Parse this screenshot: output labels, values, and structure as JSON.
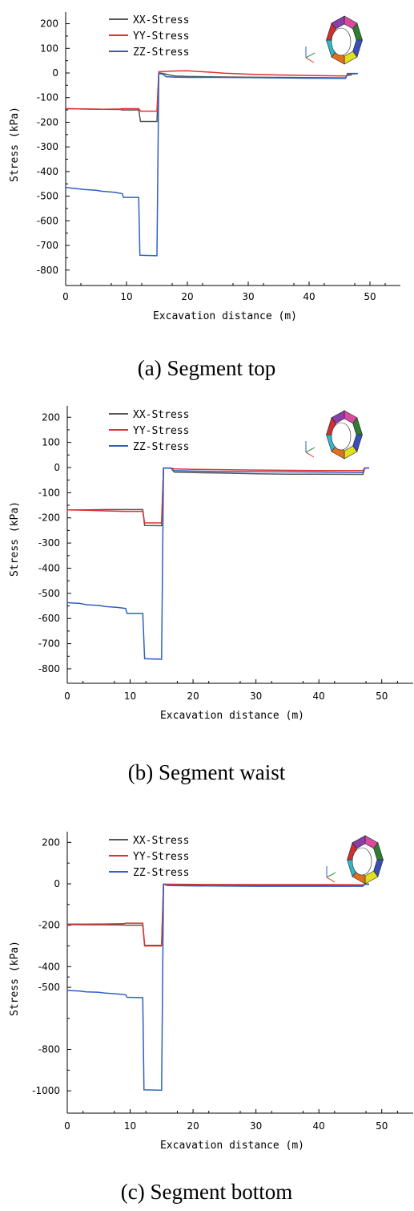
{
  "colors": {
    "XX-Stress": "#555555",
    "YY-Stress": "#e03030",
    "ZZ-Stress": "#3060c0",
    "inset_segments": [
      "#d94a9f",
      "#2e7d32",
      "#3a4fb5",
      "#e0e020",
      "#e07020",
      "#30b8c8",
      "#d03030",
      "#8a3fa8"
    ]
  },
  "chart_data": [
    {
      "type": "line",
      "caption": "(a) Segment top",
      "xlabel": "Excavation distance (m)",
      "ylabel": "Stress (kPa)",
      "xlim": [
        0,
        55
      ],
      "ylim": [
        -860,
        250
      ],
      "x_ticks": [
        "0",
        "10",
        "20",
        "30",
        "40",
        "50"
      ],
      "y_ticks": [
        "200",
        "100",
        "0",
        "-100",
        "-200",
        "-300",
        "-400",
        "-500",
        "-600",
        "-700",
        "-800"
      ],
      "legend": [
        "XX-Stress",
        "YY-Stress",
        "ZZ-Stress"
      ],
      "legend_position": "top-left",
      "series": [
        {
          "name": "XX-Stress",
          "points": [
            [
              0,
              -145
            ],
            [
              3,
              -146
            ],
            [
              6,
              -147
            ],
            [
              9,
              -148
            ],
            [
              9.3,
              -150
            ],
            [
              12,
              -150
            ],
            [
              12.3,
              -197
            ],
            [
              15,
              -197
            ],
            [
              15.3,
              0
            ],
            [
              16,
              -2
            ],
            [
              17,
              -8
            ],
            [
              18,
              -12
            ],
            [
              20,
              -14
            ],
            [
              25,
              -16
            ],
            [
              30,
              -17
            ],
            [
              35,
              -18
            ],
            [
              40,
              -19
            ],
            [
              46,
              -20
            ],
            [
              46.3,
              -5
            ],
            [
              48,
              -3
            ]
          ]
        },
        {
          "name": "YY-Stress",
          "points": [
            [
              0,
              -145
            ],
            [
              3,
              -146
            ],
            [
              6,
              -147
            ],
            [
              9,
              -146
            ],
            [
              9.3,
              -145
            ],
            [
              12,
              -145
            ],
            [
              12.3,
              -155
            ],
            [
              15,
              -155
            ],
            [
              15.3,
              5
            ],
            [
              16,
              6
            ],
            [
              17,
              7
            ],
            [
              18,
              8
            ],
            [
              20,
              9
            ],
            [
              22,
              6
            ],
            [
              24,
              3
            ],
            [
              26,
              -1
            ],
            [
              30,
              -5
            ],
            [
              35,
              -8
            ],
            [
              40,
              -10
            ],
            [
              46,
              -12
            ],
            [
              46.3,
              -10
            ],
            [
              47,
              -8
            ]
          ]
        },
        {
          "name": "ZZ-Stress",
          "points": [
            [
              0,
              -465
            ],
            [
              2,
              -470
            ],
            [
              3,
              -473
            ],
            [
              5,
              -476
            ],
            [
              6,
              -480
            ],
            [
              8,
              -484
            ],
            [
              9.3,
              -490
            ],
            [
              9.5,
              -505
            ],
            [
              12,
              -505
            ],
            [
              12.2,
              -740
            ],
            [
              15,
              -742
            ],
            [
              15.3,
              -3
            ],
            [
              16,
              -5
            ],
            [
              16.5,
              -15
            ],
            [
              18,
              -17
            ],
            [
              20,
              -18
            ],
            [
              25,
              -18
            ],
            [
              30,
              -19
            ],
            [
              35,
              -20
            ],
            [
              40,
              -21
            ],
            [
              46,
              -22
            ],
            [
              46.3,
              -2
            ],
            [
              48,
              -2
            ]
          ]
        }
      ]
    },
    {
      "type": "line",
      "caption": "(b) Segment waist",
      "xlabel": "Excavation distance (m)",
      "ylabel": "Stress (kPa)",
      "xlim": [
        0,
        55
      ],
      "ylim": [
        -860,
        250
      ],
      "x_ticks": [
        "0",
        "10",
        "20",
        "30",
        "40",
        "50"
      ],
      "y_ticks": [
        "200",
        "100",
        "0",
        "-100",
        "-200",
        "-300",
        "-400",
        "-500",
        "-600",
        "-700",
        "-800"
      ],
      "legend": [
        "XX-Stress",
        "YY-Stress",
        "ZZ-Stress"
      ],
      "legend_position": "top-left",
      "series": [
        {
          "name": "XX-Stress",
          "points": [
            [
              0,
              -168
            ],
            [
              3,
              -168
            ],
            [
              6,
              -167
            ],
            [
              9,
              -167
            ],
            [
              12,
              -167
            ],
            [
              12.3,
              -230
            ],
            [
              15,
              -231
            ],
            [
              15.3,
              -2
            ],
            [
              16.5,
              -2
            ],
            [
              17,
              -18
            ],
            [
              20,
              -20
            ],
            [
              25,
              -22
            ],
            [
              30,
              -25
            ],
            [
              35,
              -26
            ],
            [
              40,
              -26
            ],
            [
              47,
              -27
            ],
            [
              47.3,
              -2
            ],
            [
              48,
              -2
            ]
          ]
        },
        {
          "name": "YY-Stress",
          "points": [
            [
              0,
              -168
            ],
            [
              3,
              -170
            ],
            [
              6,
              -172
            ],
            [
              9,
              -174
            ],
            [
              12,
              -174
            ],
            [
              12.3,
              -220
            ],
            [
              15,
              -220
            ],
            [
              15.3,
              -2
            ],
            [
              16.5,
              -2
            ],
            [
              17,
              -5
            ],
            [
              20,
              -7
            ],
            [
              30,
              -10
            ],
            [
              40,
              -12
            ],
            [
              47,
              -12
            ],
            [
              47.3,
              -2
            ],
            [
              48,
              -2
            ]
          ]
        },
        {
          "name": "ZZ-Stress",
          "points": [
            [
              0,
              -537
            ],
            [
              2,
              -540
            ],
            [
              3,
              -545
            ],
            [
              5,
              -548
            ],
            [
              6,
              -552
            ],
            [
              8,
              -556
            ],
            [
              9.3,
              -560
            ],
            [
              9.5,
              -580
            ],
            [
              12,
              -580
            ],
            [
              12.3,
              -760
            ],
            [
              15,
              -762
            ],
            [
              15.3,
              -2
            ],
            [
              16.5,
              -3
            ],
            [
              17,
              -12
            ],
            [
              20,
              -14
            ],
            [
              25,
              -16
            ],
            [
              30,
              -17
            ],
            [
              40,
              -18
            ],
            [
              47,
              -20
            ],
            [
              47.3,
              -2
            ],
            [
              48,
              -2
            ]
          ]
        }
      ]
    },
    {
      "type": "line",
      "caption": "(c) Segment bottom",
      "xlabel": "Excavation distance (m)",
      "ylabel": "Stress (kPa)",
      "xlim": [
        0,
        55
      ],
      "ylim": [
        -1110,
        255
      ],
      "x_ticks": [
        "0",
        "10",
        "20",
        "30",
        "40",
        "50"
      ],
      "y_ticks": [
        "200",
        "0",
        "-200",
        "-400",
        "-500",
        "-800",
        "-1000"
      ],
      "legend": [
        "XX-Stress",
        "YY-Stress",
        "ZZ-Stress"
      ],
      "legend_position": "top-left",
      "series": [
        {
          "name": "XX-Stress",
          "points": [
            [
              0,
              -197
            ],
            [
              3,
              -198
            ],
            [
              6,
              -198
            ],
            [
              9,
              -199
            ],
            [
              9.3,
              -200
            ],
            [
              12,
              -200
            ],
            [
              12.3,
              -297
            ],
            [
              15,
              -297
            ],
            [
              15.3,
              -2
            ],
            [
              16,
              -4
            ],
            [
              20,
              -6
            ],
            [
              30,
              -8
            ],
            [
              40,
              -8
            ],
            [
              47,
              -8
            ],
            [
              47.3,
              -2
            ],
            [
              48,
              -2
            ]
          ]
        },
        {
          "name": "YY-Stress",
          "points": [
            [
              0,
              -195
            ],
            [
              3,
              -195
            ],
            [
              6,
              -194
            ],
            [
              9,
              -193
            ],
            [
              9.3,
              -190
            ],
            [
              12,
              -190
            ],
            [
              12.3,
              -300
            ],
            [
              15,
              -300
            ],
            [
              15.3,
              -2
            ],
            [
              16,
              -2
            ],
            [
              20,
              -3
            ],
            [
              30,
              -4
            ],
            [
              40,
              -4
            ],
            [
              47,
              -5
            ],
            [
              47.3,
              -2
            ],
            [
              48,
              -2
            ]
          ]
        },
        {
          "name": "ZZ-Stress",
          "points": [
            [
              0,
              -515
            ],
            [
              2,
              -518
            ],
            [
              3,
              -522
            ],
            [
              5,
              -524
            ],
            [
              6,
              -528
            ],
            [
              8,
              -532
            ],
            [
              9.3,
              -536
            ],
            [
              9.5,
              -548
            ],
            [
              12,
              -550
            ],
            [
              12.2,
              -995
            ],
            [
              15,
              -997
            ],
            [
              15.3,
              -2
            ],
            [
              16,
              -8
            ],
            [
              20,
              -10
            ],
            [
              30,
              -12
            ],
            [
              40,
              -12
            ],
            [
              47,
              -12
            ],
            [
              47.3,
              -2
            ],
            [
              48,
              -2
            ]
          ]
        }
      ]
    }
  ]
}
